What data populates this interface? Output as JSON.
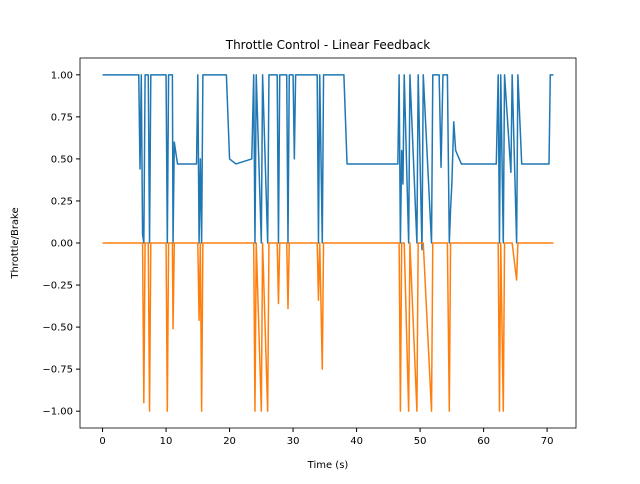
{
  "chart_data": {
    "type": "line",
    "title": "Throttle Control - Linear Feedback",
    "x_label": "Time (s)",
    "y_label": "Throttle/Brake",
    "x": [
      0,
      5.7,
      5.9,
      6.1,
      6.3,
      6.5,
      6.7,
      7.2,
      7.4,
      7.6,
      10.0,
      10.2,
      10.4,
      11.0,
      11.1,
      11.3,
      11.8,
      14.8,
      15.0,
      15.2,
      15.4,
      15.6,
      15.8,
      19.5,
      20.0,
      21.0,
      23.5,
      23.8,
      24.0,
      24.2,
      25.0,
      25.2,
      26.0,
      26.2,
      27.5,
      27.7,
      27.9,
      29.0,
      29.2,
      29.4,
      30.0,
      30.2,
      30.4,
      33.8,
      34.0,
      34.2,
      34.6,
      34.8,
      38.0,
      38.5,
      46.5,
      46.7,
      46.9,
      47.1,
      47.3,
      47.5,
      48.2,
      48.4,
      49.5,
      49.7,
      50.3,
      50.5,
      51.8,
      52.0,
      53.0,
      53.3,
      53.6,
      54.3,
      54.6,
      54.8,
      55.0,
      55.3,
      55.6,
      56.5,
      62.0,
      62.3,
      62.5,
      62.7,
      63.1,
      63.3,
      64.3,
      64.5,
      65.2,
      65.4,
      66.0,
      70.3,
      70.5,
      71.0
    ],
    "series": [
      {
        "color": "#1f77b4",
        "values": [
          1,
          1,
          0.44,
          1,
          0.05,
          0,
          1,
          1,
          0,
          1,
          1,
          0,
          1,
          1,
          0,
          0.6,
          0.47,
          0.47,
          1,
          0,
          0.5,
          0,
          1,
          1,
          0.5,
          0.47,
          0.5,
          1,
          0,
          1,
          0,
          1,
          0,
          1,
          1,
          0,
          1,
          1,
          0,
          1,
          1,
          0.5,
          1,
          1,
          0,
          1,
          0,
          1,
          1,
          0.47,
          0.47,
          1,
          0,
          0.55,
          0.35,
          1,
          0,
          1,
          0,
          1,
          -0.04,
          1,
          0,
          1,
          1,
          0.45,
          1,
          1,
          0,
          0.2,
          0.35,
          0.72,
          0.55,
          0.47,
          0.47,
          1,
          0,
          1,
          0,
          1,
          0.42,
          1,
          0,
          1,
          0.47,
          0.47,
          1,
          1
        ]
      },
      {
        "color": "#ff7f0e",
        "values": [
          0,
          0,
          0,
          0,
          0,
          -0.95,
          0,
          0,
          -1.0,
          0,
          0,
          -1.0,
          0,
          0,
          -0.51,
          0,
          0,
          0,
          0,
          -0.46,
          0,
          -1.0,
          0,
          0,
          0,
          0,
          0,
          0,
          -1.0,
          0,
          -1.0,
          0,
          -1.0,
          0,
          0,
          -0.36,
          0,
          0,
          -0.39,
          0,
          0,
          0,
          0,
          0,
          -0.34,
          0,
          -0.75,
          0,
          0,
          0,
          0,
          0,
          -1.0,
          0,
          0,
          0,
          -1.0,
          0,
          -1.0,
          0,
          0,
          0,
          -1.0,
          0,
          0,
          0,
          0,
          0,
          -1.0,
          0,
          0,
          0,
          0,
          0,
          0,
          0,
          -1.0,
          0,
          -1.0,
          0,
          0,
          0,
          -0.22,
          0,
          0,
          0,
          0,
          0
        ]
      }
    ],
    "xlim": [
      -3.55,
      74.55
    ],
    "ylim": [
      -1.1,
      1.1
    ],
    "xticks": [
      0,
      10,
      20,
      30,
      40,
      50,
      60,
      70
    ],
    "yticks": [
      {
        "value": 1,
        "label": "1.00"
      },
      {
        "value": 0.75,
        "label": "0.75"
      },
      {
        "value": 0.5,
        "label": "0.50"
      },
      {
        "value": 0.25,
        "label": "0.25"
      },
      {
        "value": 0,
        "label": "0.00"
      },
      {
        "value": -0.25,
        "label": "−0.25"
      },
      {
        "value": -0.5,
        "label": "−0.50"
      },
      {
        "value": -0.75,
        "label": "−0.75"
      },
      {
        "value": -1,
        "label": "−1.00"
      }
    ],
    "grid": false
  }
}
